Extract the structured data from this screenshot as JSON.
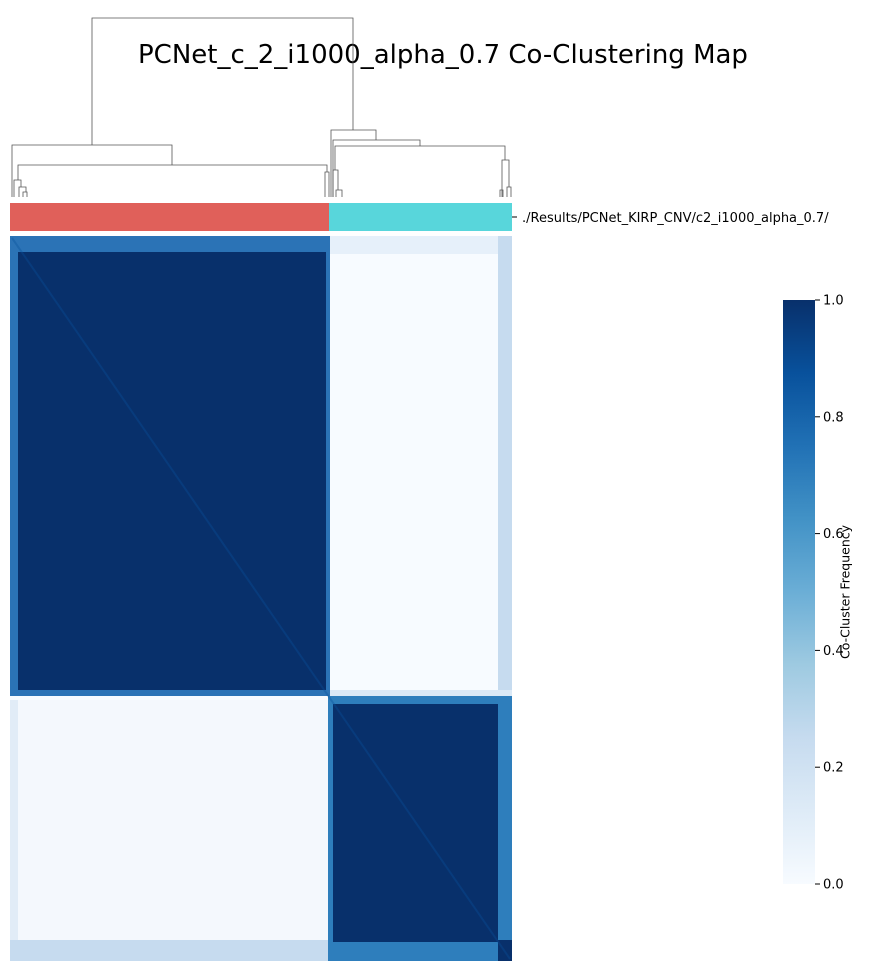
{
  "title": "PCNet_c_2_i1000_alpha_0.7 Co-Clustering Map",
  "annotation_label": "./Results/PCNet_KIRP_CNV/c2_i1000_alpha_0.7/",
  "colorbar": {
    "label": "Co-Cluster Frequency",
    "ticks": [
      "0.0",
      "0.2",
      "0.4",
      "0.6",
      "0.8",
      "1.0"
    ],
    "range": [
      0,
      1
    ],
    "colormap": "Blues"
  },
  "cluster_colors": [
    "#e0605a",
    "#58d6db"
  ],
  "chart_data": {
    "type": "heatmap",
    "title": "PCNet_c_2_i1000_alpha_0.7 Co-Clustering Map",
    "colorbar_label": "Co-Cluster Frequency",
    "value_range": [
      0,
      1
    ],
    "clusters": [
      {
        "label": "1",
        "color": "#e0605a",
        "approx_fraction": 0.635
      },
      {
        "label": "2",
        "color": "#58d6db",
        "approx_fraction": 0.365
      }
    ],
    "blocks": [
      {
        "rows": "top",
        "cols": "cluster 1",
        "value": 1.0
      },
      {
        "rows": "top",
        "cols": "cluster 2",
        "value": 0.0
      },
      {
        "rows": "bottom",
        "cols": "cluster 1",
        "value": 0.0
      },
      {
        "rows": "bottom",
        "cols": "cluster 2",
        "value": 1.0
      }
    ],
    "dendrogram": "top"
  }
}
